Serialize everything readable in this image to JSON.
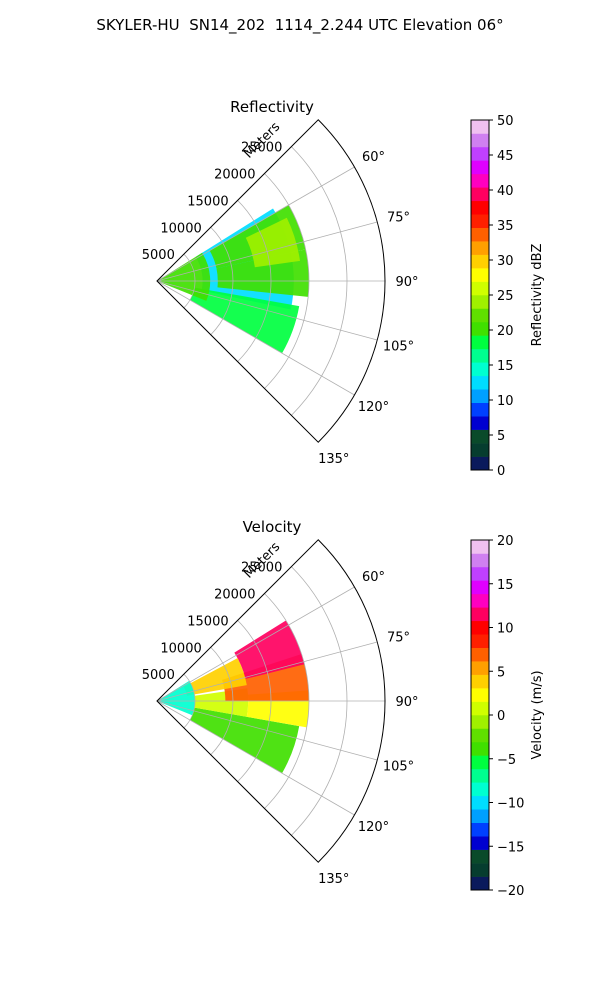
{
  "suptitle": "SKYLER-HU  SN14_202  1114_2.244 UTC Elevation 06°",
  "chart_data": [
    {
      "type": "heatmap",
      "projection": "polar-sector (PPI)",
      "title": "Reflectivity",
      "range_label": "Meters",
      "range_ticks": [
        5000,
        10000,
        15000,
        20000,
        25000
      ],
      "range_tick_labels": [
        "5000",
        "10000",
        "15000",
        "20000",
        "25000"
      ],
      "rmax": 30000,
      "azimuth_ticks": [
        60,
        75,
        90,
        105,
        120,
        135
      ],
      "azimuth_tick_labels": [
        "60°",
        "75°",
        "90°",
        "105°",
        "120°",
        "135°"
      ],
      "azimuth_range": [
        45,
        135
      ],
      "grid": true,
      "colorbar": {
        "label": "Reflectivity dBZ",
        "vmin": 0,
        "vmax": 50,
        "ticks": [
          0,
          5,
          10,
          15,
          20,
          25,
          30,
          35,
          40,
          45,
          50
        ],
        "tick_labels": [
          "0",
          "5",
          "10",
          "15",
          "20",
          "25",
          "30",
          "35",
          "40",
          "45",
          "50"
        ],
        "colors": [
          "#0a1a5c",
          "#063d2f",
          "#0a4a2a",
          "#0000d0",
          "#0040ff",
          "#00a0ff",
          "#00ddff",
          "#00ffd0",
          "#00ff90",
          "#00ff40",
          "#40e000",
          "#60e000",
          "#a0f000",
          "#d0ff00",
          "#ffff00",
          "#ffd000",
          "#ffa000",
          "#ff6000",
          "#ff2000",
          "#ff0000",
          "#ff0060",
          "#ff00c0",
          "#e000ff",
          "#c040ff",
          "#d080f0",
          "#f0c0f0"
        ]
      },
      "regions": [
        {
          "az_start": 58,
          "az_end": 102,
          "r_start": 6000,
          "r_end": 18000,
          "value": 12
        },
        {
          "az_start": 60,
          "az_end": 78,
          "r_start": 8000,
          "r_end": 20000,
          "value": 21
        },
        {
          "az_start": 78,
          "az_end": 96,
          "r_start": 8000,
          "r_end": 20000,
          "value": 20
        },
        {
          "az_start": 100,
          "az_end": 120,
          "r_start": 5000,
          "r_end": 19000,
          "value": 19
        },
        {
          "az_start": 64,
          "az_end": 82,
          "r_start": 13000,
          "r_end": 19000,
          "value": 24
        },
        {
          "az_start": 58,
          "az_end": 112,
          "r_start": 0,
          "r_end": 7000,
          "value": 21
        }
      ]
    },
    {
      "type": "heatmap",
      "projection": "polar-sector (PPI)",
      "title": "Velocity",
      "range_label": "Meters",
      "range_ticks": [
        5000,
        10000,
        15000,
        20000,
        25000
      ],
      "range_tick_labels": [
        "5000",
        "10000",
        "15000",
        "20000",
        "25000"
      ],
      "rmax": 30000,
      "azimuth_ticks": [
        60,
        75,
        90,
        105,
        120,
        135
      ],
      "azimuth_tick_labels": [
        "60°",
        "75°",
        "90°",
        "105°",
        "120°",
        "135°"
      ],
      "azimuth_range": [
        45,
        135
      ],
      "grid": true,
      "colorbar": {
        "label": "Velocity (m/s)",
        "vmin": -20,
        "vmax": 20,
        "ticks": [
          -20,
          -15,
          -10,
          -5,
          0,
          5,
          10,
          15,
          20
        ],
        "tick_labels": [
          "−20",
          "−15",
          "−10",
          "−5",
          "0",
          "5",
          "10",
          "15",
          "20"
        ],
        "colors": [
          "#0a1a5c",
          "#063d2f",
          "#0a4a2a",
          "#0000d0",
          "#0040ff",
          "#00a0ff",
          "#00ddff",
          "#00ffd0",
          "#00ff90",
          "#00ff40",
          "#40e000",
          "#60e000",
          "#a0f000",
          "#d0ff00",
          "#ffff00",
          "#ffd000",
          "#ffa000",
          "#ff6000",
          "#ff2000",
          "#ff0000",
          "#ff0060",
          "#ff00c0",
          "#e000ff",
          "#c040ff",
          "#d080f0",
          "#f0c0f0"
        ]
      },
      "regions": [
        {
          "az_start": 100,
          "az_end": 120,
          "r_start": 5000,
          "r_end": 19000,
          "value": -4
        },
        {
          "az_start": 82,
          "az_end": 100,
          "r_start": 5000,
          "r_end": 12000,
          "value": 1
        },
        {
          "az_start": 86,
          "az_end": 100,
          "r_start": 12000,
          "r_end": 20000,
          "value": 3
        },
        {
          "az_start": 72,
          "az_end": 90,
          "r_start": 9000,
          "r_end": 20000,
          "value": 7
        },
        {
          "az_start": 58,
          "az_end": 76,
          "r_start": 12000,
          "r_end": 20000,
          "value": 11
        },
        {
          "az_start": 62,
          "az_end": 80,
          "r_start": 4000,
          "r_end": 12000,
          "value": 4
        },
        {
          "az_start": 58,
          "az_end": 112,
          "r_start": 0,
          "r_end": 5000,
          "value": -9
        }
      ]
    }
  ]
}
